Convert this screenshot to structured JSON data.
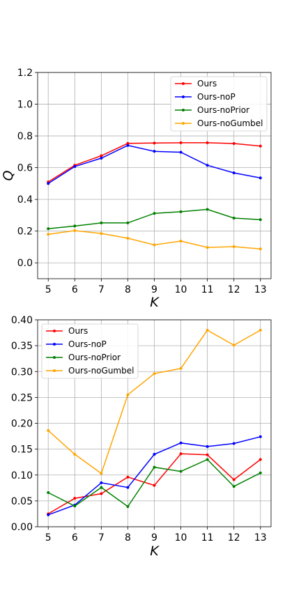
{
  "chart_data": [
    {
      "type": "line",
      "title": "",
      "xlabel": "K",
      "ylabel": "Q",
      "x": [
        5,
        6,
        7,
        8,
        9,
        10,
        11,
        12,
        13
      ],
      "xlim": [
        4.6,
        13.4
      ],
      "ylim": [
        -0.1,
        1.2
      ],
      "xticks": [
        "5",
        "6",
        "7",
        "8",
        "9",
        "10",
        "11",
        "12",
        "13"
      ],
      "yticks": [
        "0.0",
        "0.2",
        "0.4",
        "0.6",
        "0.8",
        "1.0",
        "1.2"
      ],
      "ytick_values": [
        0.0,
        0.2,
        0.4,
        0.6,
        0.8,
        1.0,
        1.2
      ],
      "grid": true,
      "legend_position": "top-right",
      "series": [
        {
          "name": "Ours",
          "color": "#ff0000",
          "values": [
            0.51,
            0.615,
            0.675,
            0.753,
            0.755,
            0.757,
            0.757,
            0.752,
            0.736
          ]
        },
        {
          "name": "Ours-noP",
          "color": "#0000ff",
          "values": [
            0.5,
            0.607,
            0.66,
            0.74,
            0.703,
            0.697,
            0.615,
            0.567,
            0.535
          ]
        },
        {
          "name": "Ours-noPrior",
          "color": "#008000",
          "values": [
            0.215,
            0.232,
            0.252,
            0.252,
            0.312,
            0.322,
            0.337,
            0.282,
            0.272
          ]
        },
        {
          "name": "Ours-noGumbel",
          "color": "#ffa500",
          "values": [
            0.18,
            0.203,
            0.185,
            0.155,
            0.113,
            0.137,
            0.097,
            0.102,
            0.088
          ]
        }
      ]
    },
    {
      "type": "line",
      "title": "",
      "xlabel": "K",
      "ylabel": "",
      "x": [
        5,
        6,
        7,
        8,
        9,
        10,
        11,
        12,
        13
      ],
      "xlim": [
        4.6,
        13.4
      ],
      "ylim": [
        0.0,
        0.4
      ],
      "xticks": [
        "5",
        "6",
        "7",
        "8",
        "9",
        "10",
        "11",
        "12",
        "13"
      ],
      "yticks": [
        "0.00",
        "0.05",
        "0.10",
        "0.15",
        "0.20",
        "0.25",
        "0.30",
        "0.35",
        "0.40"
      ],
      "ytick_values": [
        0.0,
        0.05,
        0.1,
        0.15,
        0.2,
        0.25,
        0.3,
        0.35,
        0.4
      ],
      "grid": true,
      "legend_position": "top-left",
      "series": [
        {
          "name": "Ours",
          "color": "#ff0000",
          "values": [
            0.025,
            0.055,
            0.064,
            0.096,
            0.08,
            0.141,
            0.139,
            0.091,
            0.13
          ]
        },
        {
          "name": "Ours-noP",
          "color": "#0000ff",
          "values": [
            0.023,
            0.042,
            0.085,
            0.076,
            0.14,
            0.162,
            0.155,
            0.161,
            0.174
          ]
        },
        {
          "name": "Ours-noPrior",
          "color": "#008000",
          "values": [
            0.066,
            0.04,
            0.076,
            0.039,
            0.115,
            0.107,
            0.13,
            0.078,
            0.104
          ]
        },
        {
          "name": "Ours-noGumbel",
          "color": "#ffa500",
          "values": [
            0.186,
            0.14,
            0.103,
            0.255,
            0.296,
            0.306,
            0.38,
            0.351,
            0.38
          ]
        }
      ]
    }
  ]
}
